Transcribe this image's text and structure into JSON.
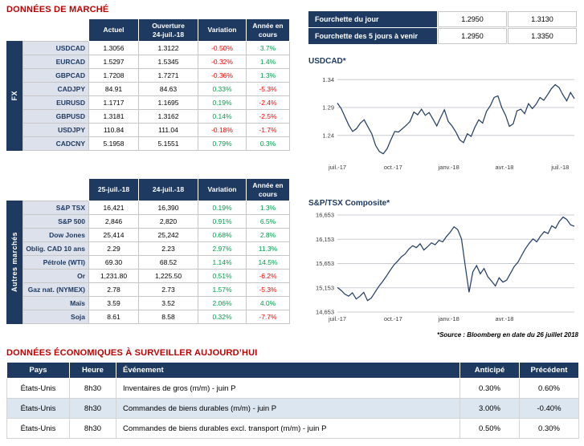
{
  "page": {
    "section1_title": "DONNÉES DE MARCHÉ",
    "section2_title": "DONNÉES ÉCONOMIQUES À SURVEILLER AUJOURD’HUI",
    "source_note": "*Source : Bloomberg en date du 26 juillet 2018"
  },
  "colors": {
    "navy_header": "#1F3A60",
    "red_heading": "#C00000",
    "positive_value": "#00A14B",
    "negative_value": "#FF0000",
    "row_label_bg": "#DCE1EC",
    "alt_row_bg": "#DCE6F1"
  },
  "fx_table": {
    "group_label": "FX",
    "headers": {
      "current": "Actuel",
      "open": "Ouverture\n24-juil.-18",
      "variation": "Variation",
      "ytd": "Année en\ncours"
    },
    "rows": [
      {
        "label": "USDCAD",
        "current": "1.3056",
        "open": "1.3122",
        "variation": "-0.50%",
        "ytd": "3.7%"
      },
      {
        "label": "EURCAD",
        "current": "1.5297",
        "open": "1.5345",
        "variation": "-0.32%",
        "ytd": "1.4%"
      },
      {
        "label": "GBPCAD",
        "current": "1.7208",
        "open": "1.7271",
        "variation": "-0.36%",
        "ytd": "1.3%"
      },
      {
        "label": "CADJPY",
        "current": "84.91",
        "open": "84.63",
        "variation": "0.33%",
        "ytd": "-5.3%"
      },
      {
        "label": "EURUSD",
        "current": "1.1717",
        "open": "1.1695",
        "variation": "0.19%",
        "ytd": "-2.4%"
      },
      {
        "label": "GBPUSD",
        "current": "1.3181",
        "open": "1.3162",
        "variation": "0.14%",
        "ytd": "-2.5%"
      },
      {
        "label": "USDJPY",
        "current": "110.84",
        "open": "111.04",
        "variation": "-0.18%",
        "ytd": "-1.7%"
      },
      {
        "label": "CADCNY",
        "current": "5.1958",
        "open": "5.1551",
        "variation": "0.79%",
        "ytd": "0.3%"
      }
    ]
  },
  "markets_table": {
    "group_label": "Autres marchés",
    "headers": {
      "d1": "25-juil.-18",
      "d2": "24-juil.-18",
      "variation": "Variation",
      "ytd": "Année en\ncours"
    },
    "rows": [
      {
        "label": "S&P TSX",
        "d1": "16,421",
        "d2": "16,390",
        "variation": "0.19%",
        "ytd": "1.3%"
      },
      {
        "label": "S&P 500",
        "d1": "2,846",
        "d2": "2,820",
        "variation": "0.91%",
        "ytd": "6.5%"
      },
      {
        "label": "Dow Jones",
        "d1": "25,414",
        "d2": "25,242",
        "variation": "0.68%",
        "ytd": "2.8%"
      },
      {
        "label": "Oblig. CAD 10 ans",
        "d1": "2.29",
        "d2": "2.23",
        "variation": "2.97%",
        "ytd": "11.3%"
      },
      {
        "label": "Pétrole (WTI)",
        "d1": "69.30",
        "d2": "68.52",
        "variation": "1.14%",
        "ytd": "14.5%"
      },
      {
        "label": "Or",
        "d1": "1,231.80",
        "d2": "1,225.50",
        "variation": "0.51%",
        "ytd": "-6.2%"
      },
      {
        "label": "Gaz nat. (NYMEX)",
        "d1": "2.78",
        "d2": "2.73",
        "variation": "1.57%",
        "ytd": "-5.3%"
      },
      {
        "label": "Maïs",
        "d1": "3.59",
        "d2": "3.52",
        "variation": "2.06%",
        "ytd": "4.0%"
      },
      {
        "label": "Soja",
        "d1": "8.61",
        "d2": "8.58",
        "variation": "0.32%",
        "ytd": "-7.7%"
      }
    ]
  },
  "ranges": {
    "rows": [
      {
        "label": "Fourchette du jour",
        "low": "1.2950",
        "high": "1.3130"
      },
      {
        "label": "Fourchette des 5 jours à venir",
        "low": "1.2950",
        "high": "1.3350"
      }
    ]
  },
  "events_table": {
    "headers": {
      "country": "Pays",
      "time": "Heure",
      "event": "Événement",
      "anticipated": "Anticipé",
      "previous": "Précédent"
    },
    "rows": [
      {
        "country": "États-Unis",
        "time": "8h30",
        "event": "Inventaires de gros (m/m) -  juin P",
        "anticipated": "0.30%",
        "previous": "0.60%"
      },
      {
        "country": "États-Unis",
        "time": "8h30",
        "event": "Commandes de biens durables (m/m) -  juin P",
        "anticipated": "3.00%",
        "previous": "-0.40%"
      },
      {
        "country": "États-Unis",
        "time": "8h30",
        "event": "Commandes de biens durables excl. transport (m/m) -  juin P",
        "anticipated": "0.50%",
        "previous": "0.30%"
      }
    ]
  },
  "chart_data": [
    {
      "type": "line",
      "title": "USDCAD*",
      "xlabel": "",
      "ylabel": "",
      "x_range": [
        "juil.-17",
        "juil.-18"
      ],
      "ylim": [
        1.195,
        1.352
      ],
      "yticks": [
        1.24,
        1.29,
        1.34
      ],
      "ytick_labels": [
        "1.24",
        "1.29",
        "1.34"
      ],
      "xtick_labels": [
        "juil.-17",
        "oct.-17",
        "janv.-18",
        "avr.-18",
        "juil.-18"
      ],
      "xtick_pos": [
        0,
        0.235,
        0.47,
        0.705,
        0.94
      ],
      "grid": "horizontal",
      "legend": "none",
      "line_color": "#1F3A60",
      "values": [
        1.298,
        1.288,
        1.273,
        1.258,
        1.247,
        1.252,
        1.262,
        1.268,
        1.255,
        1.243,
        1.222,
        1.211,
        1.207,
        1.216,
        1.232,
        1.247,
        1.246,
        1.252,
        1.258,
        1.265,
        1.282,
        1.277,
        1.287,
        1.276,
        1.281,
        1.269,
        1.257,
        1.272,
        1.286,
        1.265,
        1.257,
        1.246,
        1.232,
        1.227,
        1.243,
        1.238,
        1.255,
        1.268,
        1.262,
        1.283,
        1.293,
        1.308,
        1.311,
        1.29,
        1.276,
        1.256,
        1.261,
        1.284,
        1.287,
        1.279,
        1.297,
        1.288,
        1.296,
        1.308,
        1.303,
        1.313,
        1.324,
        1.331,
        1.326,
        1.313,
        1.302,
        1.317,
        1.306
      ]
    },
    {
      "type": "line",
      "title": "S&P/TSX Composite*",
      "xlabel": "",
      "ylabel": "",
      "x_range": [
        "juil.-17",
        "juil.-18"
      ],
      "ylim": [
        14653,
        16653
      ],
      "yticks": [
        14653,
        15153,
        15653,
        16153,
        16653
      ],
      "ytick_labels": [
        "14,653",
        "15,153",
        "15,653",
        "16,153",
        "16,653"
      ],
      "xtick_labels": [
        "juil.-17",
        "oct.-17",
        "janv.-18",
        "avr.-18"
      ],
      "xtick_pos": [
        0,
        0.235,
        0.47,
        0.705
      ],
      "grid": "horizontal",
      "legend": "none",
      "line_color": "#1F3A60",
      "values": [
        15160,
        15100,
        15020,
        14980,
        15050,
        14920,
        14980,
        15060,
        14890,
        14940,
        15060,
        15180,
        15280,
        15390,
        15510,
        15620,
        15700,
        15790,
        15850,
        15950,
        16020,
        15980,
        16060,
        15930,
        16000,
        16080,
        16040,
        16130,
        16100,
        16210,
        16300,
        16410,
        16350,
        16160,
        15600,
        15060,
        15480,
        15610,
        15440,
        15550,
        15380,
        15290,
        15190,
        15360,
        15270,
        15310,
        15450,
        15590,
        15680,
        15820,
        15960,
        16070,
        16160,
        16100,
        16220,
        16310,
        16270,
        16430,
        16380,
        16520,
        16610,
        16560,
        16450,
        16420
      ]
    }
  ]
}
